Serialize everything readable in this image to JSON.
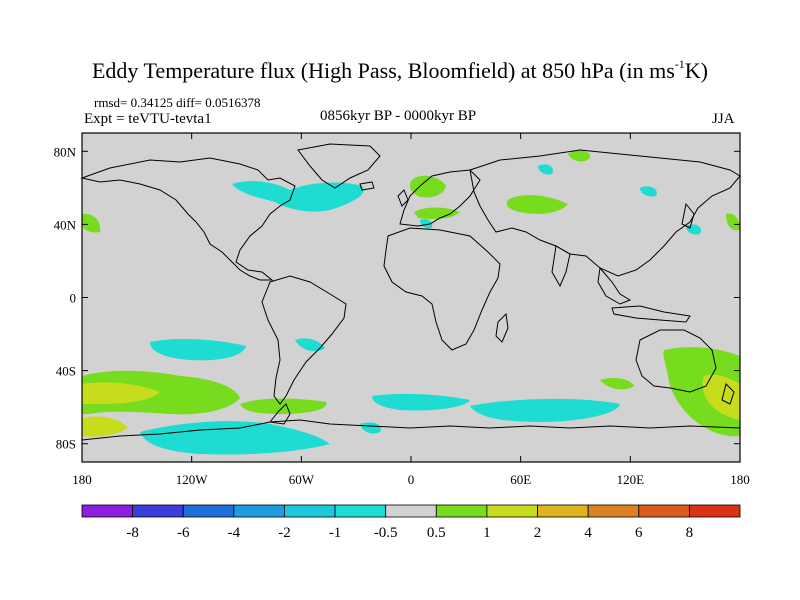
{
  "title": {
    "main": "Eddy Temperature flux (High Pass, Bloomfield) at 850 hPa (in ms",
    "sup": "-1",
    "tail": "K)"
  },
  "stats": "rmsd= 0.34125 diff= 0.0516378",
  "experiment": "Expt = teVTU-tevta1",
  "period": "0856kyr BP - 0000kyr BP",
  "season": "JJA",
  "axes": {
    "lat_labels": [
      "80N",
      "40N",
      "0",
      "40S",
      "80S"
    ],
    "lat_values": [
      80,
      40,
      0,
      -40,
      -80
    ],
    "lon_labels": [
      "180",
      "120W",
      "60W",
      "0",
      "60E",
      "120E",
      "180"
    ],
    "lon_values": [
      -180,
      -120,
      -60,
      0,
      60,
      120,
      180
    ]
  },
  "colorbar": {
    "labels": [
      "-8",
      "-6",
      "-4",
      "-2",
      "-1",
      "-0.5",
      "0.5",
      "1",
      "2",
      "4",
      "6",
      "8"
    ],
    "colors": [
      "#8c1ee0",
      "#3c3cdc",
      "#1e6edc",
      "#1e9bdc",
      "#1ec8dc",
      "#1edcd2",
      "#d2d2d2",
      "#78dc1e",
      "#c8dc1e",
      "#dcb41e",
      "#dc821e",
      "#dc5a1e",
      "#dc3214"
    ]
  },
  "colors": {
    "ocean_land_bg": "#d2d2d2",
    "coast": "#000000"
  }
}
